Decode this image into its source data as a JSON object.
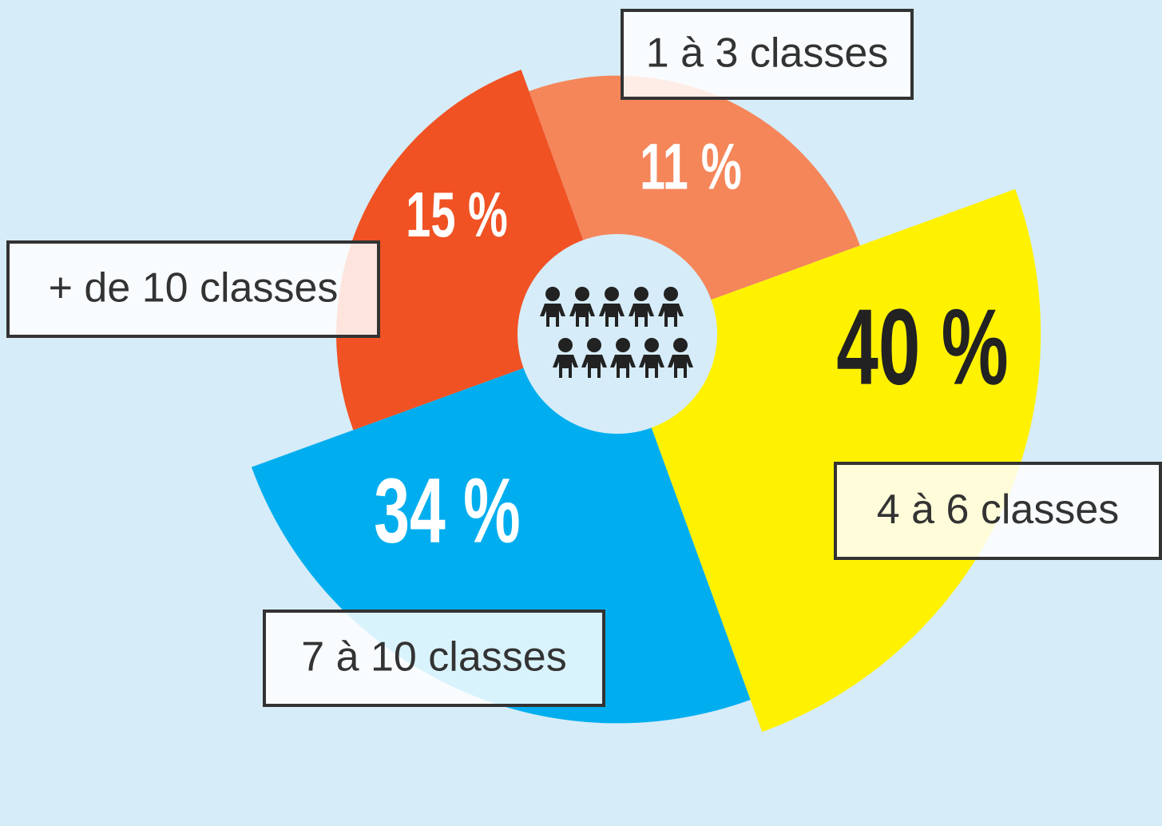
{
  "chart_data": {
    "type": "pie",
    "categories": [
      "1 à 3 classes",
      "4 à 6 classes",
      "7 à 10 classes",
      "+ de 10 classes"
    ],
    "values": [
      11,
      40,
      34,
      15
    ],
    "value_labels": [
      "11 %",
      "40 %",
      "34 %",
      "15 %"
    ],
    "colors": [
      "#f4865a",
      "#fff200",
      "#00aeef",
      "#f05224"
    ]
  }
}
